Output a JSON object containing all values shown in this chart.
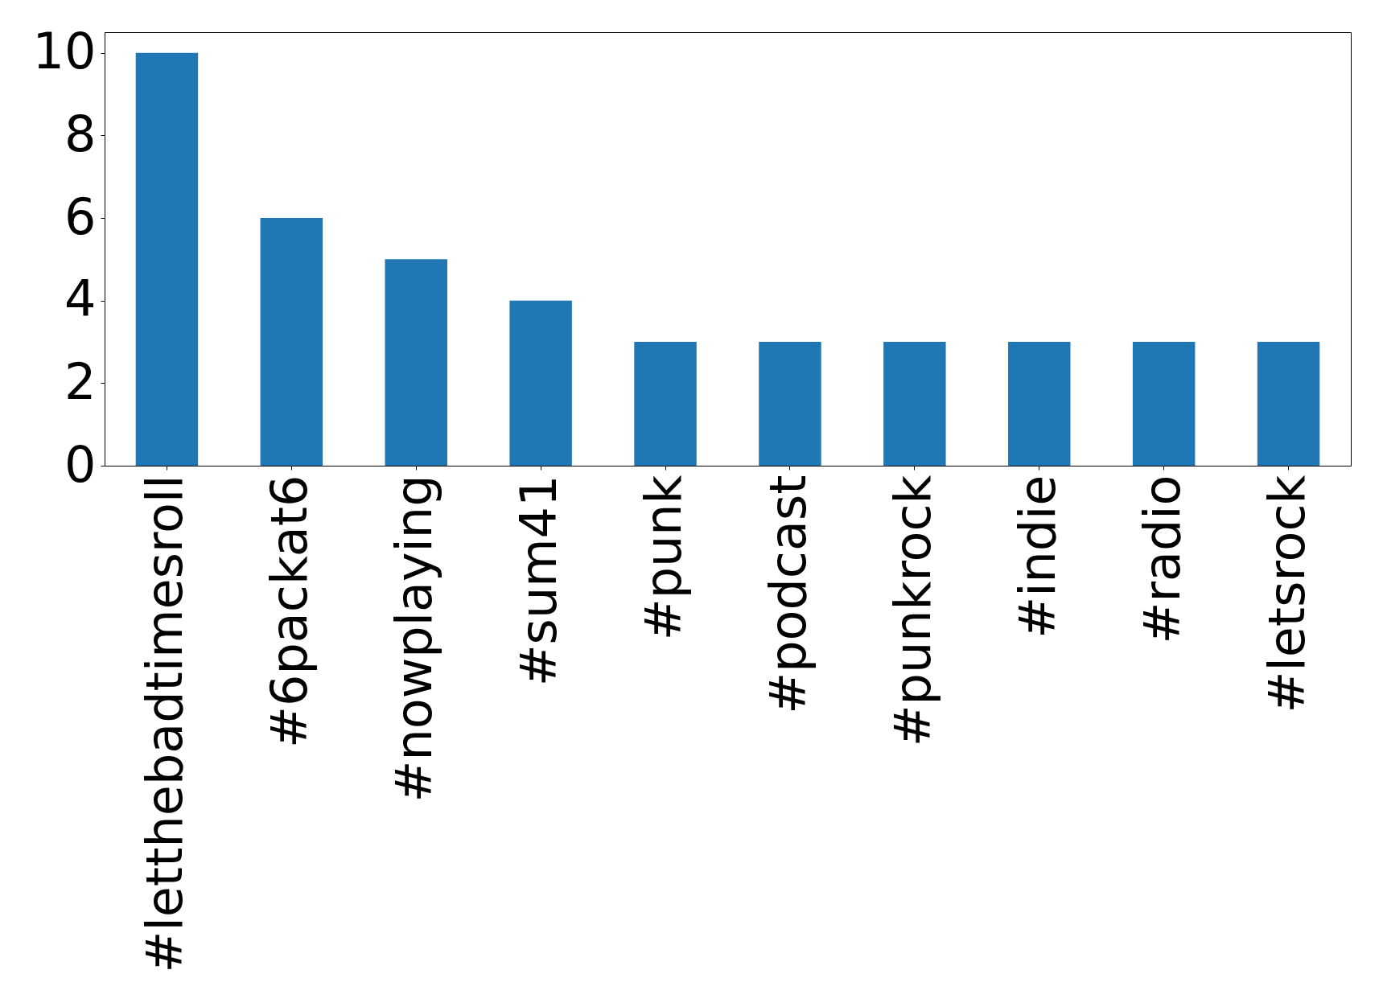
{
  "chart_data": {
    "type": "bar",
    "categories": [
      "#letthebadtimesroll",
      "#6packat6",
      "#nowplaying",
      "#sum41",
      "#punk",
      "#podcast",
      "#punkrock",
      "#indie",
      "#radio",
      "#letsrock"
    ],
    "values": [
      10,
      6,
      5,
      4,
      3,
      3,
      3,
      3,
      3,
      3
    ],
    "color": "#1f77b4",
    "ylim": [
      0,
      10.5
    ],
    "yticks": [
      0,
      2,
      4,
      6,
      8,
      10
    ]
  }
}
